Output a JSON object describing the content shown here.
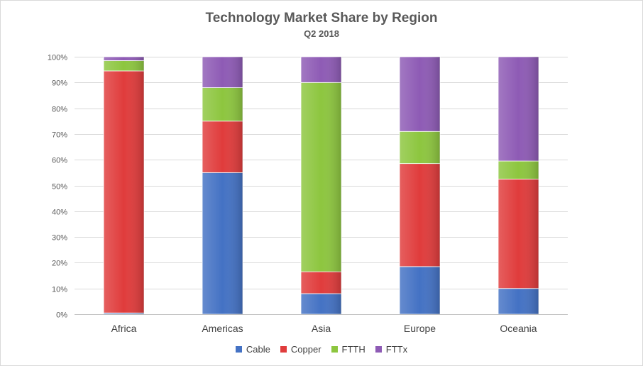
{
  "chart_data": {
    "type": "bar",
    "stacked": true,
    "title": "Technology Market Share by Region",
    "subtitle": "Q2 2018",
    "categories": [
      "Africa",
      "Americas",
      "Asia",
      "Europe",
      "Oceania"
    ],
    "series": [
      {
        "name": "Cable",
        "color": "#4472c4",
        "values": [
          0.5,
          55,
          8,
          18.5,
          10
        ]
      },
      {
        "name": "Copper",
        "color": "#e03c3c",
        "values": [
          94,
          20,
          8.5,
          40,
          42.5
        ]
      },
      {
        "name": "FTTH",
        "color": "#8dc63f",
        "values": [
          4,
          13,
          73.5,
          12.5,
          7
        ]
      },
      {
        "name": "FTTx",
        "color": "#8e5bb5",
        "values": [
          1.5,
          12,
          10,
          29,
          40.5
        ]
      }
    ],
    "yticks": [
      "0%",
      "10%",
      "20%",
      "30%",
      "40%",
      "50%",
      "60%",
      "70%",
      "80%",
      "90%",
      "100%"
    ],
    "ylim": [
      0,
      100
    ],
    "grid": true,
    "legend": "bottom"
  }
}
